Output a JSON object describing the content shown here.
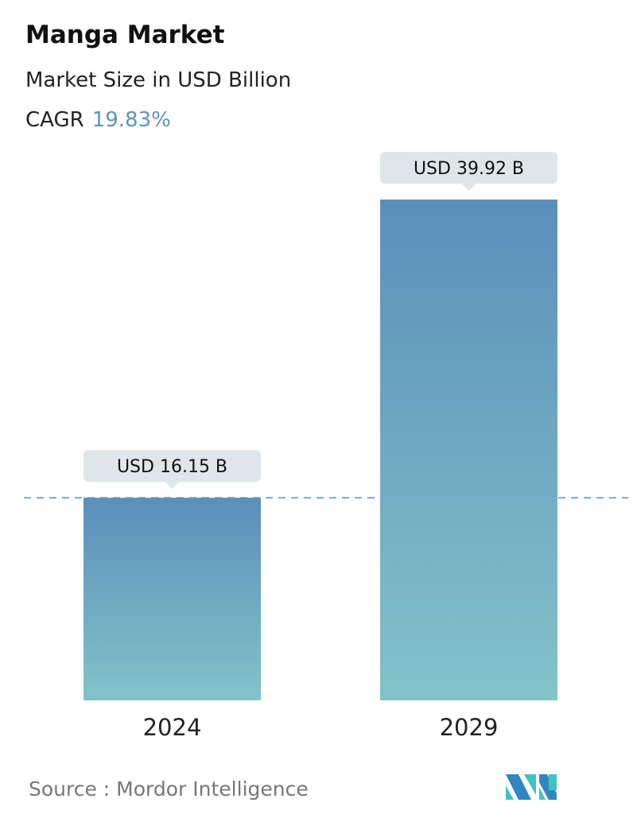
{
  "header": {
    "title": "Manga Market",
    "subtitle": "Market Size in USD Billion",
    "cagr_label": "CAGR",
    "cagr_value": "19.83%"
  },
  "chart_data": {
    "type": "bar",
    "categories": [
      "2024",
      "2029"
    ],
    "values": [
      16.15,
      39.92
    ],
    "data_labels": [
      "USD 16.15 B",
      "USD 39.92 B"
    ],
    "reference_line": 16.15,
    "grid": false,
    "colors": {
      "bar_top": "#5b8fba",
      "bar_bottom": "#82c3c9",
      "label_bg": "#dfe6e9",
      "dashed_line": "#5b8db8",
      "cagr": "#5f93bb"
    }
  },
  "footer": {
    "source": "Source :  Mordor Intelligence"
  },
  "logo": {
    "name": "mordor-intelligence-logo"
  }
}
